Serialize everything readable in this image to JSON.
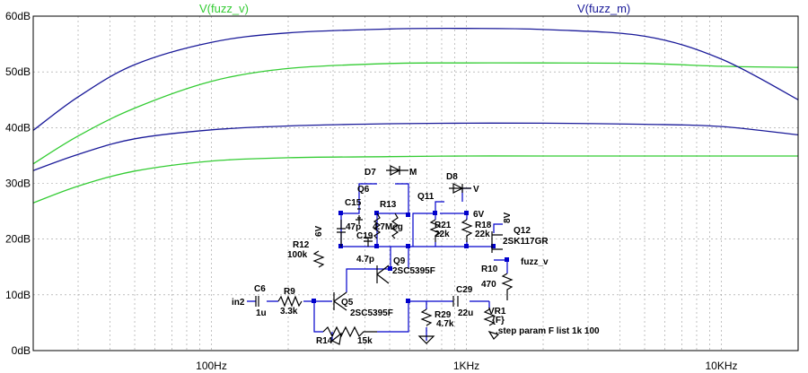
{
  "chart_data": {
    "type": "line",
    "x_scale": "log",
    "xlim": [
      20,
      20000
    ],
    "ylim": [
      0,
      60
    ],
    "x_ticks": [
      {
        "value": 100,
        "label": "100Hz"
      },
      {
        "value": 1000,
        "label": "1KHz"
      },
      {
        "value": 10000,
        "label": "10KHz"
      }
    ],
    "y_ticks": [
      {
        "value": 0,
        "label": "0dB"
      },
      {
        "value": 10,
        "label": "10dB"
      },
      {
        "value": 20,
        "label": "20dB"
      },
      {
        "value": 30,
        "label": "30dB"
      },
      {
        "value": 40,
        "label": "40dB"
      },
      {
        "value": 50,
        "label": "50dB"
      },
      {
        "value": 60,
        "label": "60dB"
      }
    ],
    "grid": "dashed",
    "colors": {
      "fuzz_v": "#33cc33",
      "fuzz_m": "#1a1a99"
    },
    "series": [
      {
        "name": "V(fuzz_v)",
        "color_key": "fuzz_v",
        "step": "F=1k",
        "x": [
          20,
          30,
          50,
          100,
          200,
          500,
          1000,
          2000,
          5000,
          10000,
          20000
        ],
        "y": [
          33.5,
          38.5,
          43.5,
          48.3,
          50.6,
          51.5,
          51.6,
          51.6,
          51.5,
          51.0,
          50.8
        ]
      },
      {
        "name": "V(fuzz_v)",
        "color_key": "fuzz_v",
        "step": "F=100",
        "x": [
          20,
          30,
          50,
          100,
          200,
          500,
          1000,
          2000,
          5000,
          10000,
          20000
        ],
        "y": [
          26.5,
          29.5,
          32.2,
          34.0,
          34.6,
          34.8,
          34.9,
          34.9,
          34.9,
          34.9,
          34.9
        ]
      },
      {
        "name": "V(fuzz_m)",
        "color_key": "fuzz_m",
        "step": "F=1k",
        "x": [
          20,
          30,
          50,
          100,
          200,
          500,
          1000,
          2000,
          5000,
          10000,
          20000
        ],
        "y": [
          39.5,
          45.5,
          51.3,
          55.3,
          57.0,
          57.7,
          57.8,
          57.6,
          56.4,
          52.3,
          45.0
        ]
      },
      {
        "name": "V(fuzz_m)",
        "color_key": "fuzz_m",
        "step": "F=100",
        "x": [
          20,
          30,
          50,
          100,
          200,
          500,
          1000,
          2000,
          5000,
          10000,
          20000
        ],
        "y": [
          32.3,
          35.2,
          38.0,
          39.6,
          40.3,
          40.7,
          40.8,
          40.8,
          40.6,
          40.2,
          38.7
        ]
      }
    ]
  },
  "schematic": {
    "step_directive": ".step param F list 1k 100",
    "nets": {
      "input": "in2",
      "out_v": "fuzz_v",
      "out_m": "M",
      "out_vr": "V"
    },
    "sources": {
      "v_top": "6V",
      "v_right": "6V",
      "v_q12": "8V"
    },
    "diodes": {
      "d7": "D7",
      "d8": "D8"
    },
    "transistors": {
      "q5": {
        "ref": "Q5",
        "model": "2SC5395F"
      },
      "q6": {
        "ref": "Q6"
      },
      "q9": {
        "ref": "Q9",
        "model": "2SC5395F"
      },
      "q11": {
        "ref": "Q11"
      },
      "q12": {
        "ref": "Q12",
        "model": "2SK117GR"
      }
    },
    "resistors": {
      "r9": {
        "ref": "R9",
        "value": "3.3k"
      },
      "r10": {
        "ref": "R10",
        "value": "470"
      },
      "r12": {
        "ref": "R12",
        "value": "100k"
      },
      "r13": {
        "ref": "R13",
        "value": "4.7Meg"
      },
      "r14": {
        "ref": "R14",
        "value": "15k"
      },
      "r18": {
        "ref": "R18",
        "value": "22k"
      },
      "r21": {
        "ref": "R21",
        "value": "22k"
      },
      "r29": {
        "ref": "R29",
        "value": "4.7k"
      }
    },
    "capacitors": {
      "c6": {
        "ref": "C6",
        "value": "1u"
      },
      "c15": {
        "ref": "C15",
        "value": "47p"
      },
      "c19": {
        "ref": "C19",
        "value": "4.7p"
      },
      "c29": {
        "ref": "C29",
        "value": "22u"
      }
    },
    "pot": {
      "ref": "VR1",
      "value": "{F}"
    }
  }
}
